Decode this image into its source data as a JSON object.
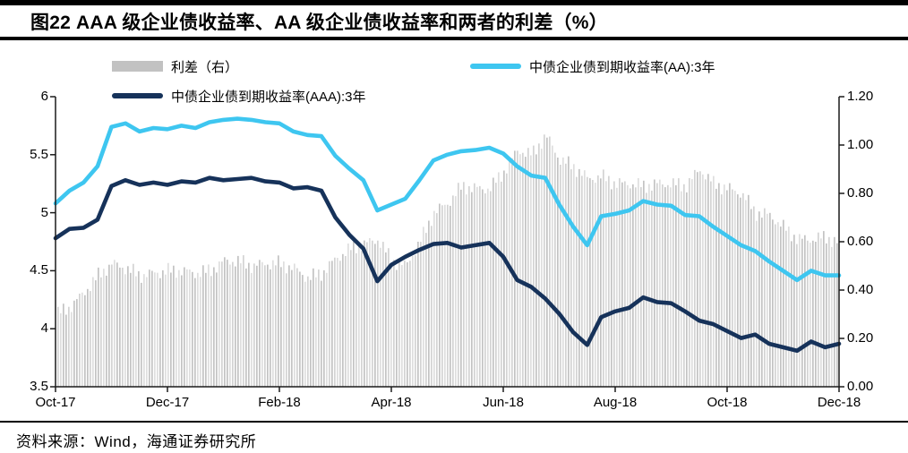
{
  "header": {
    "title": "图22 AAA 级企业债收益率、AA 级企业债收益率和两者的利差（%）"
  },
  "footer": {
    "source": "资料来源：Wind，海通证券研究所"
  },
  "legend": {
    "spread": {
      "label": "利差（右）",
      "color": "#c2c2c2"
    },
    "aa": {
      "label": "中债企业债到期收益率(AA):3年",
      "color": "#3ec6f0"
    },
    "aaa": {
      "label": "中债企业债到期收益率(AAA):3年",
      "color": "#16325a"
    }
  },
  "chart_data": {
    "type": "line+bar",
    "title": "AAA 级企业债收益率、AA 级企业债收益率和两者的利差（%）",
    "legend_position": "top",
    "grid": "off",
    "x_unit": "months since Oct-2017",
    "x_tick_positions": [
      0,
      2,
      4,
      6,
      8,
      10,
      12,
      14
    ],
    "x_tick_labels": [
      "Oct-17",
      "Dec-17",
      "Feb-18",
      "Apr-18",
      "Jun-18",
      "Aug-18",
      "Oct-18",
      "Dec-18"
    ],
    "left_axis": {
      "range": [
        3.5,
        6.0
      ],
      "tick_labels": [
        "3.5",
        "4",
        "4.5",
        "5",
        "5.5",
        "6"
      ]
    },
    "right_axis": {
      "range": [
        0.0,
        1.2
      ],
      "tick_labels": [
        "0.00",
        "0.20",
        "0.40",
        "0.60",
        "0.80",
        "1.00",
        "1.20"
      ]
    },
    "x_months": [
      0,
      0.25,
      0.5,
      0.75,
      1,
      1.25,
      1.5,
      1.75,
      2,
      2.25,
      2.5,
      2.75,
      3,
      3.25,
      3.5,
      3.75,
      4,
      4.25,
      4.5,
      4.75,
      5,
      5.25,
      5.5,
      5.75,
      6,
      6.25,
      6.5,
      6.75,
      7,
      7.25,
      7.5,
      7.75,
      8,
      8.25,
      8.5,
      8.75,
      9,
      9.25,
      9.5,
      9.75,
      10,
      10.25,
      10.5,
      10.75,
      11,
      11.25,
      11.5,
      11.75,
      12,
      12.25,
      12.5,
      12.75,
      13,
      13.25,
      13.5,
      13.75,
      14
    ],
    "series": [
      {
        "name": "中债企业债到期收益率(AA):3年",
        "type": "line",
        "axis": "left",
        "color": "#3ec6f0",
        "values": [
          5.08,
          5.19,
          5.26,
          5.4,
          5.74,
          5.77,
          5.7,
          5.73,
          5.72,
          5.75,
          5.73,
          5.78,
          5.8,
          5.81,
          5.8,
          5.78,
          5.77,
          5.7,
          5.67,
          5.66,
          5.49,
          5.38,
          5.28,
          5.02,
          5.07,
          5.12,
          5.28,
          5.45,
          5.5,
          5.53,
          5.54,
          5.56,
          5.51,
          5.4,
          5.32,
          5.3,
          5.07,
          4.88,
          4.72,
          4.97,
          4.99,
          5.02,
          5.1,
          5.07,
          5.06,
          4.98,
          4.97,
          4.88,
          4.8,
          4.72,
          4.67,
          4.58,
          4.5,
          4.42,
          4.5,
          4.46,
          4.46
        ]
      },
      {
        "name": "中债企业债到期收益率(AAA):3年",
        "type": "line",
        "axis": "left",
        "color": "#16325a",
        "values": [
          4.78,
          4.86,
          4.87,
          4.94,
          5.23,
          5.28,
          5.24,
          5.26,
          5.24,
          5.27,
          5.26,
          5.3,
          5.28,
          5.29,
          5.3,
          5.27,
          5.26,
          5.21,
          5.22,
          5.19,
          4.96,
          4.81,
          4.69,
          4.41,
          4.55,
          4.62,
          4.68,
          4.73,
          4.74,
          4.7,
          4.72,
          4.74,
          4.62,
          4.42,
          4.36,
          4.26,
          4.13,
          3.97,
          3.86,
          4.1,
          4.15,
          4.18,
          4.27,
          4.23,
          4.22,
          4.15,
          4.07,
          4.04,
          3.98,
          3.92,
          3.95,
          3.87,
          3.84,
          3.81,
          3.89,
          3.84,
          3.87
        ]
      },
      {
        "name": "利差（右）",
        "type": "bar",
        "axis": "right",
        "color": "#d7d7d7",
        "values": [
          0.3,
          0.33,
          0.39,
          0.46,
          0.51,
          0.49,
          0.46,
          0.47,
          0.48,
          0.48,
          0.47,
          0.48,
          0.52,
          0.52,
          0.5,
          0.51,
          0.51,
          0.49,
          0.45,
          0.47,
          0.53,
          0.57,
          0.59,
          0.61,
          0.52,
          0.5,
          0.6,
          0.72,
          0.76,
          0.83,
          0.82,
          0.82,
          0.89,
          0.98,
          0.96,
          1.04,
          0.94,
          0.91,
          0.86,
          0.87,
          0.84,
          0.84,
          0.83,
          0.84,
          0.84,
          0.83,
          0.9,
          0.84,
          0.82,
          0.8,
          0.72,
          0.71,
          0.66,
          0.61,
          0.61,
          0.62,
          0.59
        ]
      }
    ]
  }
}
